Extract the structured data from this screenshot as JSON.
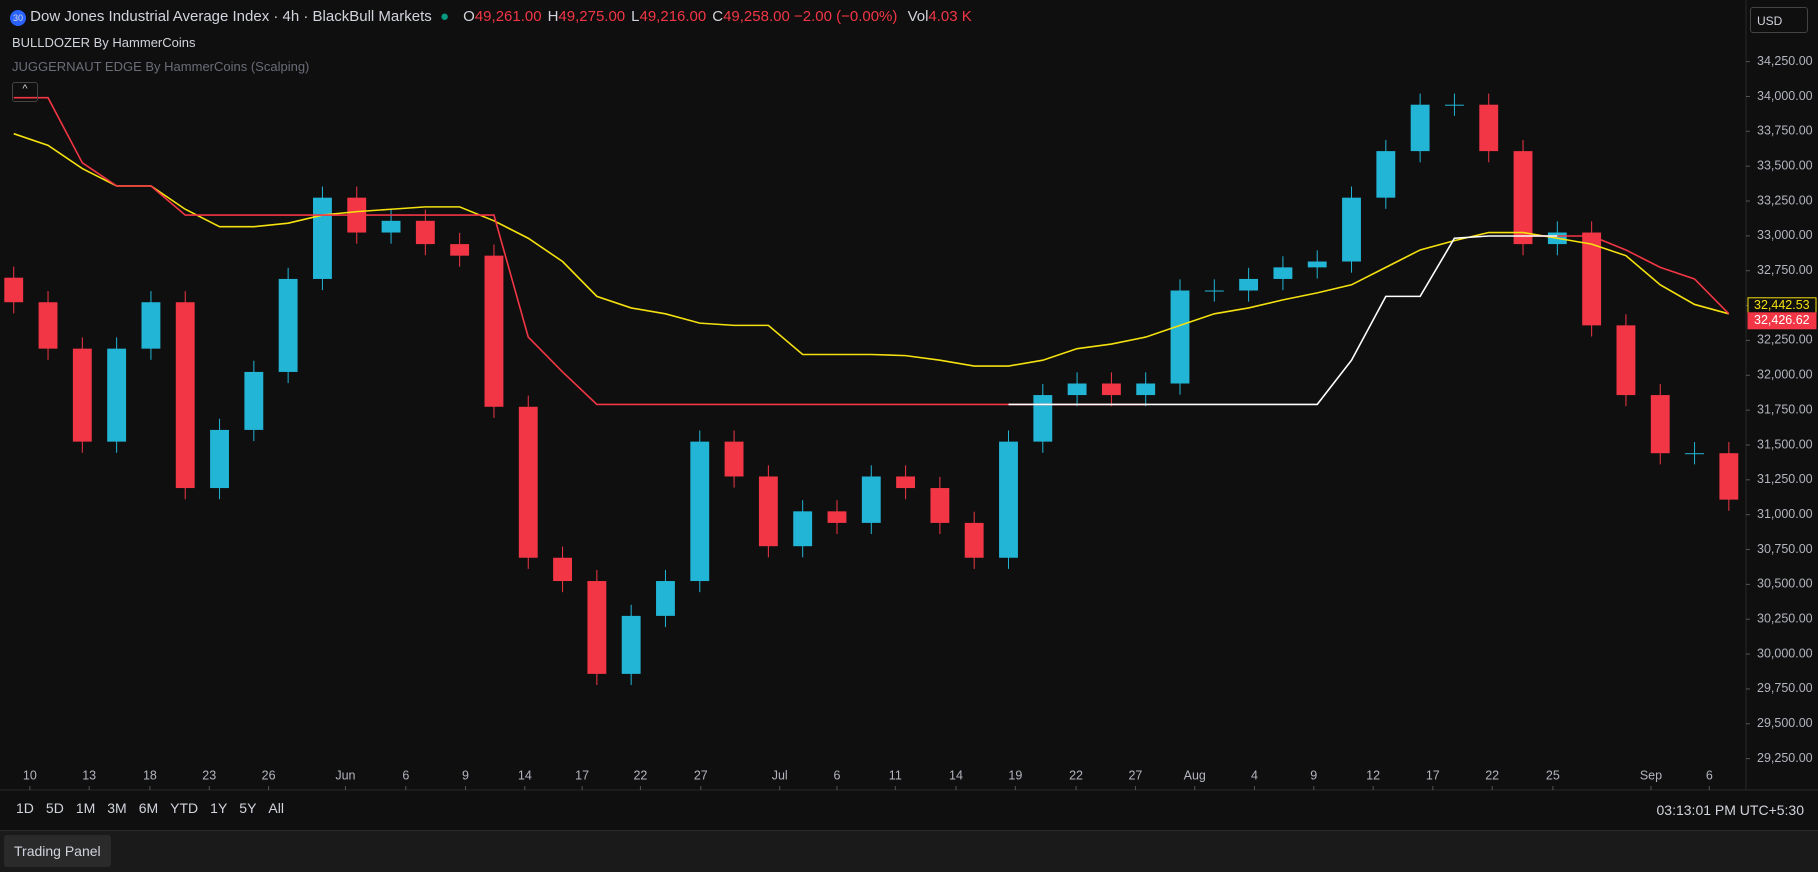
{
  "header": {
    "badge": "30",
    "title": "Dow Jones Industrial Average Index · 4h · BlackBull Markets",
    "ohlc": [
      {
        "key": "O",
        "val": "49,261.00"
      },
      {
        "key": "H",
        "val": "49,275.00"
      },
      {
        "key": "L",
        "val": "49,216.00"
      },
      {
        "key": "C",
        "val": "49,258.00"
      }
    ],
    "change": "−2.00 (−0.00%)",
    "vol_key": "Vol",
    "vol": "4.03 K",
    "indicators": [
      "BULLDOZER By HammerCoins",
      "JUGGERNAUT EDGE By HammerCoins (Scalping)"
    ],
    "currency": "USD"
  },
  "chart_data": {
    "type": "candlestick",
    "up_color": "#22b5d6",
    "down_color": "#f23645",
    "x": [
      0,
      1,
      2,
      3,
      4,
      5,
      6,
      7,
      8,
      9,
      10,
      11,
      12,
      13,
      14,
      15,
      16,
      17,
      18,
      19,
      20,
      21,
      22,
      23,
      24,
      25,
      26,
      27,
      28,
      29,
      30,
      31,
      32,
      33,
      34,
      35,
      36,
      37,
      38,
      39,
      40,
      41,
      42,
      43,
      44,
      45,
      46,
      47,
      48,
      49,
      50
    ],
    "open": [
      32700,
      32524,
      32191,
      31524,
      32191,
      32524,
      31191,
      31608,
      32024,
      32691,
      33274,
      33024,
      33108,
      32941,
      32858,
      31774,
      30691,
      30524,
      29858,
      30274,
      30524,
      31524,
      31274,
      30774,
      31024,
      30941,
      31274,
      31191,
      30941,
      30691,
      31524,
      31858,
      31941,
      31858,
      31941,
      32608,
      32608,
      32691,
      32774,
      32816,
      33274,
      33608,
      33941,
      33941,
      33608,
      32941,
      33024,
      32358,
      31858,
      31441,
      31441
    ],
    "high": [
      32780,
      32604,
      32271,
      32271,
      32604,
      32604,
      31688,
      32104,
      32771,
      33354,
      33354,
      33188,
      33188,
      33021,
      32938,
      31854,
      30771,
      30604,
      30354,
      30604,
      31604,
      31604,
      31354,
      31104,
      31104,
      31354,
      31354,
      31271,
      31021,
      31604,
      31938,
      32021,
      32021,
      32021,
      32688,
      32688,
      32771,
      32854,
      32896,
      33354,
      33688,
      34021,
      34021,
      34021,
      33688,
      33104,
      33104,
      32438,
      31938,
      31521,
      31521
    ],
    "low": [
      32444,
      32111,
      31444,
      31444,
      32111,
      31111,
      31111,
      31528,
      31944,
      32611,
      32944,
      32944,
      32861,
      32778,
      31694,
      30611,
      30444,
      29778,
      29778,
      30194,
      30444,
      31194,
      30694,
      30694,
      30861,
      30861,
      31111,
      30861,
      30611,
      30611,
      31444,
      31778,
      31778,
      31778,
      31861,
      32528,
      32528,
      32611,
      32694,
      32736,
      33194,
      33528,
      33861,
      33528,
      32861,
      32861,
      32278,
      31778,
      31361,
      31361,
      31028
    ],
    "close": [
      32524,
      32191,
      31524,
      32191,
      32524,
      31191,
      31608,
      32024,
      32691,
      33274,
      33024,
      33108,
      32941,
      32858,
      31774,
      30691,
      30524,
      29858,
      30274,
      30524,
      31524,
      31274,
      30774,
      31024,
      30941,
      31274,
      31191,
      30941,
      30691,
      31524,
      31858,
      31941,
      31858,
      31941,
      32608,
      32608,
      32691,
      32774,
      32816,
      33274,
      33608,
      33941,
      33941,
      33608,
      32941,
      33024,
      32358,
      31858,
      31441,
      31441,
      31108
    ],
    "series": [
      {
        "color": "#f5e10f",
        "last_label": "32,442.53",
        "values": [
          33733,
          33649,
          33483,
          33358,
          33358,
          33191,
          33066,
          33066,
          33091,
          33149,
          33174,
          33191,
          33208,
          33208,
          33108,
          32983,
          32816,
          32566,
          32483,
          32441,
          32374,
          32358,
          32358,
          32149,
          32149,
          32149,
          32141,
          32108,
          32066,
          32066,
          32108,
          32191,
          32224,
          32274,
          32358,
          32441,
          32483,
          32541,
          32591,
          32649,
          32774,
          32899,
          32966,
          33024,
          33024,
          32983,
          32941,
          32858,
          32649,
          32508,
          32441
        ]
      },
      {
        "color": "#f23645",
        "last_label": "32,426.62",
        "values": [
          33991,
          33991,
          33524,
          33358,
          33358,
          33149,
          33149,
          33149,
          33149,
          33149,
          33149,
          33149,
          33149,
          33149,
          33149,
          32274,
          32024,
          31791,
          31791,
          31791,
          31791,
          31791,
          31791,
          31791,
          31791,
          31791,
          31791,
          31791,
          31791,
          31791,
          31791,
          31791,
          31791,
          31791,
          null,
          null,
          null,
          null,
          null,
          null,
          null,
          null,
          null,
          null,
          32999,
          32999,
          32999,
          32899,
          32774,
          32691,
          32441
        ]
      },
      {
        "color": "#ffffff",
        "values": [
          null,
          null,
          null,
          null,
          null,
          null,
          null,
          null,
          null,
          null,
          null,
          null,
          null,
          null,
          null,
          null,
          null,
          null,
          null,
          null,
          null,
          null,
          null,
          null,
          null,
          null,
          null,
          null,
          null,
          31791,
          31791,
          31791,
          31791,
          31791,
          31791,
          31791,
          31791,
          31791,
          31791,
          32108,
          32566,
          32566,
          32983,
          32999,
          32999,
          32999,
          null,
          null,
          null,
          null,
          null
        ]
      }
    ],
    "xlim": [
      -0.4,
      50.5
    ],
    "ylim": [
      29025,
      34692
    ],
    "xticks": [
      {
        "value": 0.47,
        "label": "10"
      },
      {
        "value": 2.2,
        "label": "13"
      },
      {
        "value": 3.97,
        "label": "18"
      },
      {
        "value": 5.7,
        "label": "23"
      },
      {
        "value": 7.43,
        "label": "26"
      },
      {
        "value": 9.67,
        "label": "Jun"
      },
      {
        "value": 11.43,
        "label": "6"
      },
      {
        "value": 13.17,
        "label": "9"
      },
      {
        "value": 14.9,
        "label": "14"
      },
      {
        "value": 16.57,
        "label": "17"
      },
      {
        "value": 18.27,
        "label": "22"
      },
      {
        "value": 20.03,
        "label": "27"
      },
      {
        "value": 22.33,
        "label": "Jul"
      },
      {
        "value": 24,
        "label": "6"
      },
      {
        "value": 25.7,
        "label": "11"
      },
      {
        "value": 27.47,
        "label": "14"
      },
      {
        "value": 29.2,
        "label": "19"
      },
      {
        "value": 30.97,
        "label": "22"
      },
      {
        "value": 32.7,
        "label": "27"
      },
      {
        "value": 34.43,
        "label": "Aug"
      },
      {
        "value": 36.17,
        "label": "4"
      },
      {
        "value": 37.9,
        "label": "9"
      },
      {
        "value": 39.63,
        "label": "12"
      },
      {
        "value": 41.37,
        "label": "17"
      },
      {
        "value": 43.1,
        "label": "22"
      },
      {
        "value": 44.87,
        "label": "25"
      },
      {
        "value": 47.73,
        "label": "Sep"
      },
      {
        "value": 49.43,
        "label": "6"
      }
    ],
    "yticks": [
      {
        "value": 34250,
        "label": "34,250.00"
      },
      {
        "value": 34000,
        "label": "34,000.00"
      },
      {
        "value": 33750,
        "label": "33,750.00"
      },
      {
        "value": 33500,
        "label": "33,500.00"
      },
      {
        "value": 33250,
        "label": "33,250.00"
      },
      {
        "value": 33000,
        "label": "33,000.00"
      },
      {
        "value": 32750,
        "label": "32,750.00"
      },
      {
        "value": 32500,
        "label": "32,500.00"
      },
      {
        "value": 32250,
        "label": "32,250.00"
      },
      {
        "value": 32000,
        "label": "32,000.00"
      },
      {
        "value": 31750,
        "label": "31,750.00"
      },
      {
        "value": 31500,
        "label": "31,500.00"
      },
      {
        "value": 31250,
        "label": "31,250.00"
      },
      {
        "value": 31000,
        "label": "31,000.00"
      },
      {
        "value": 30750,
        "label": "30,750.00"
      },
      {
        "value": 30500,
        "label": "30,500.00"
      },
      {
        "value": 30250,
        "label": "30,250.00"
      },
      {
        "value": 30000,
        "label": "30,000.00"
      },
      {
        "value": 29750,
        "label": "29,750.00"
      },
      {
        "value": 29500,
        "label": "29,500.00"
      },
      {
        "value": 29250,
        "label": "29,250.00"
      }
    ]
  },
  "footer": {
    "ranges": [
      "1D",
      "5D",
      "1M",
      "3M",
      "6M",
      "YTD",
      "1Y",
      "5Y",
      "All"
    ],
    "clock": "03:13:01 PM UTC+5:30",
    "panel": "Trading Panel"
  }
}
